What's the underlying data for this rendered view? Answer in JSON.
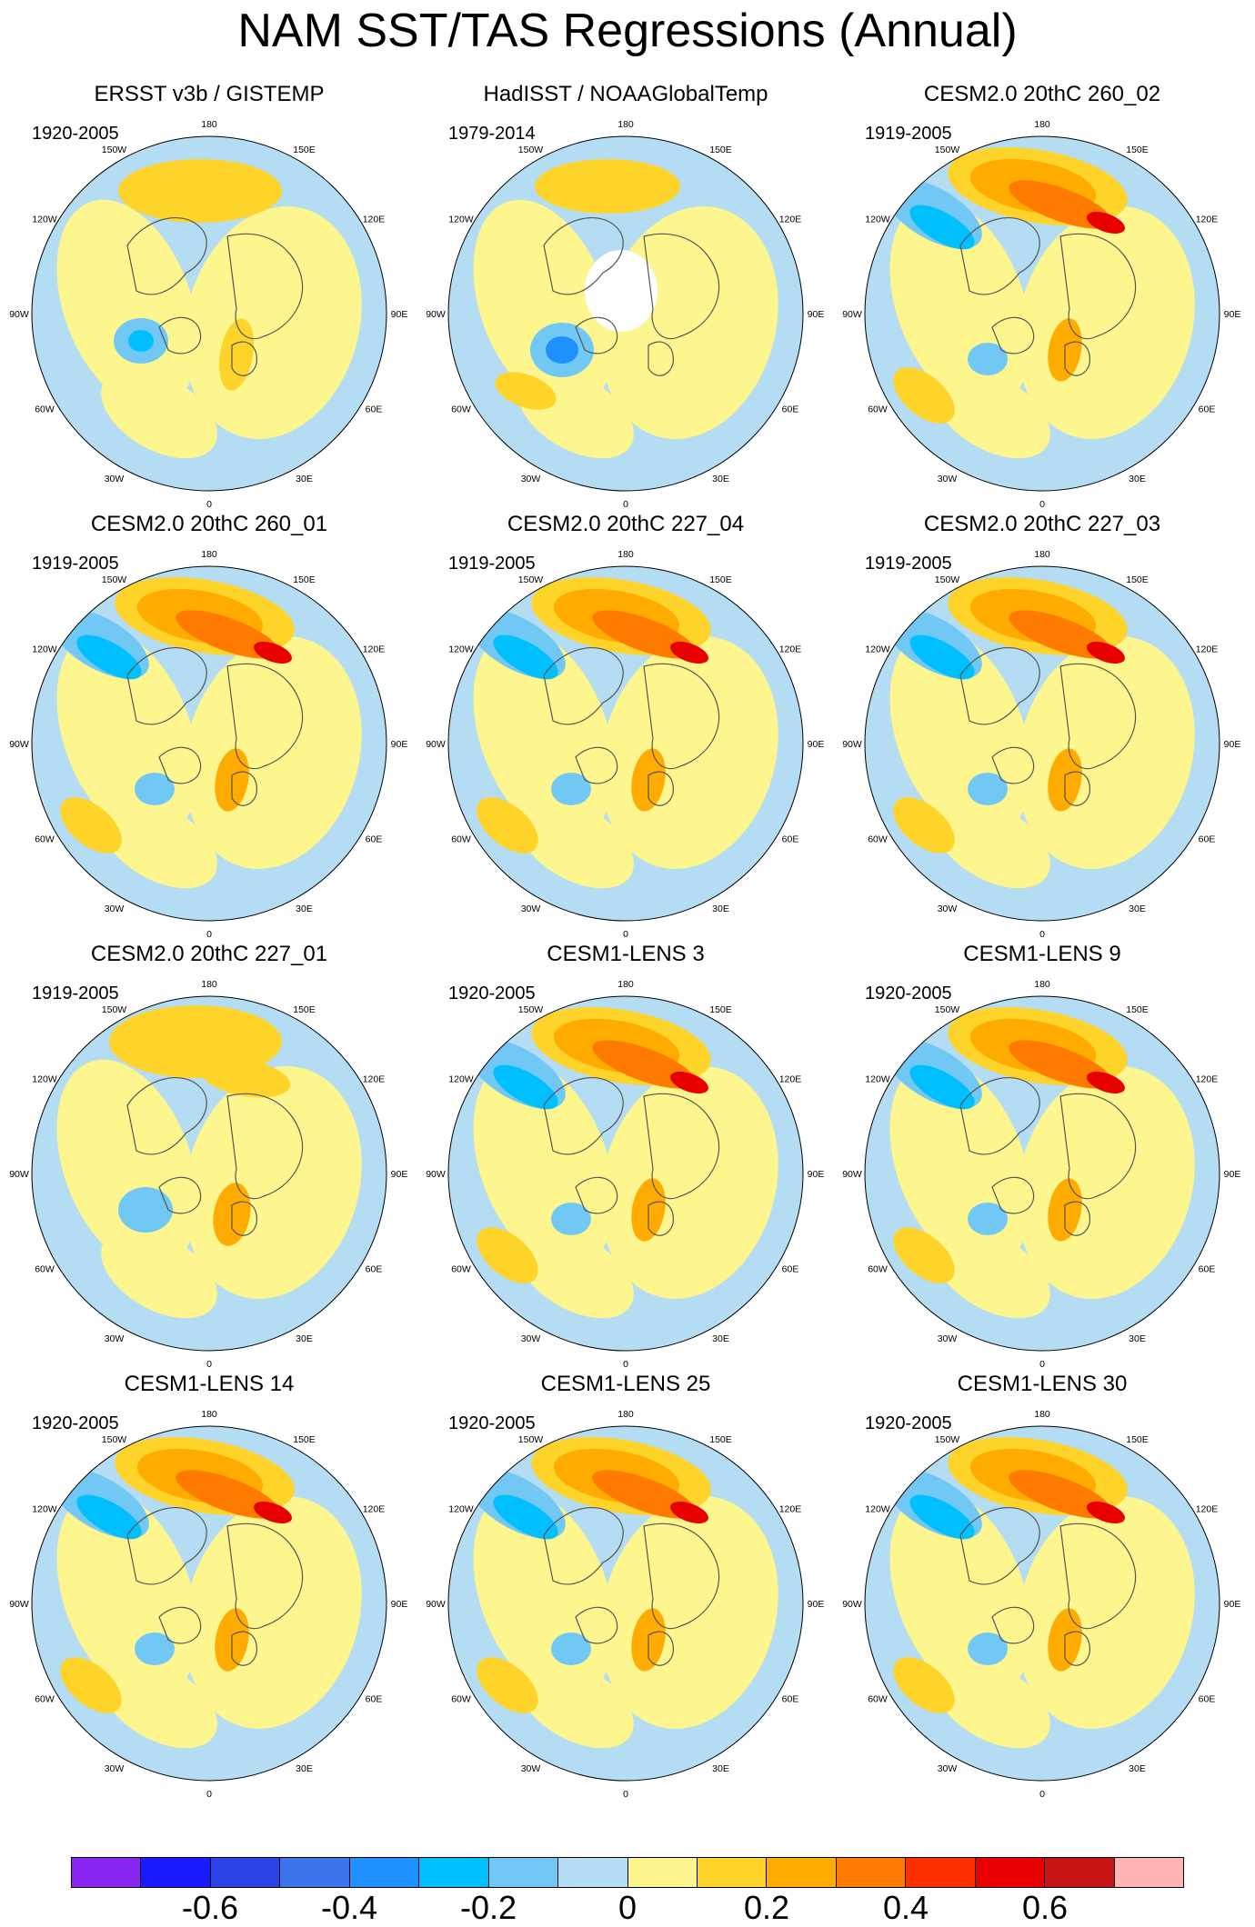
{
  "title": "NAM SST/TAS Regressions (Annual)",
  "panels": [
    {
      "title": "ERSST v3b / GISTEMP",
      "years": "1920-2005",
      "pattern": "obs"
    },
    {
      "title": "HadISST / NOAAGlobalTemp",
      "years": "1979-2014",
      "pattern": "obs2"
    },
    {
      "title": "CESM2.0 20thC 260_02",
      "years": "1919-2005",
      "pattern": "strong"
    },
    {
      "title": "CESM2.0 20thC 260_01",
      "years": "1919-2005",
      "pattern": "strong"
    },
    {
      "title": "CESM2.0 20thC 227_04",
      "years": "1919-2005",
      "pattern": "strong"
    },
    {
      "title": "CESM2.0 20thC 227_03",
      "years": "1919-2005",
      "pattern": "strong"
    },
    {
      "title": "CESM2.0 20thC 227_01",
      "years": "1919-2005",
      "pattern": "weak"
    },
    {
      "title": "CESM1-LENS 3",
      "years": "1920-2005",
      "pattern": "strong"
    },
    {
      "title": "CESM1-LENS 9",
      "years": "1920-2005",
      "pattern": "strong"
    },
    {
      "title": "CESM1-LENS 14",
      "years": "1920-2005",
      "pattern": "strong"
    },
    {
      "title": "CESM1-LENS 25",
      "years": "1920-2005",
      "pattern": "strong"
    },
    {
      "title": "CESM1-LENS 30",
      "years": "1920-2005",
      "pattern": "strong"
    }
  ],
  "lon_labels": [
    "180",
    "150E",
    "120E",
    "90E",
    "60E",
    "30E",
    "0",
    "30W",
    "60W",
    "90W",
    "120W",
    "150W"
  ],
  "colorbar": {
    "colors": [
      "#8a24f0",
      "#1a1aff",
      "#2b44e8",
      "#3a74ea",
      "#1e90ff",
      "#00bfff",
      "#72c8f4",
      "#b4dcf2",
      "#fdf68f",
      "#ffd42a",
      "#ffab00",
      "#ff7b00",
      "#ff3000",
      "#e80000",
      "#c81414",
      "#ffb4b4"
    ],
    "labels": [
      "-0.6",
      "-0.4",
      "-0.2",
      "0",
      "0.2",
      "0.4",
      "0.6"
    ]
  },
  "palette": {
    "ocean_light_blue": "#b4dcf2",
    "mid_blue": "#72c8f4",
    "blue": "#00bfff",
    "deep_blue": "#1e90ff",
    "dark_blue": "#3a74ea",
    "yellow": "#fdf68f",
    "gold": "#ffd42a",
    "orange": "#ffab00",
    "dark_orange": "#ff7b00",
    "red": "#e80000",
    "coast": "#555555"
  }
}
